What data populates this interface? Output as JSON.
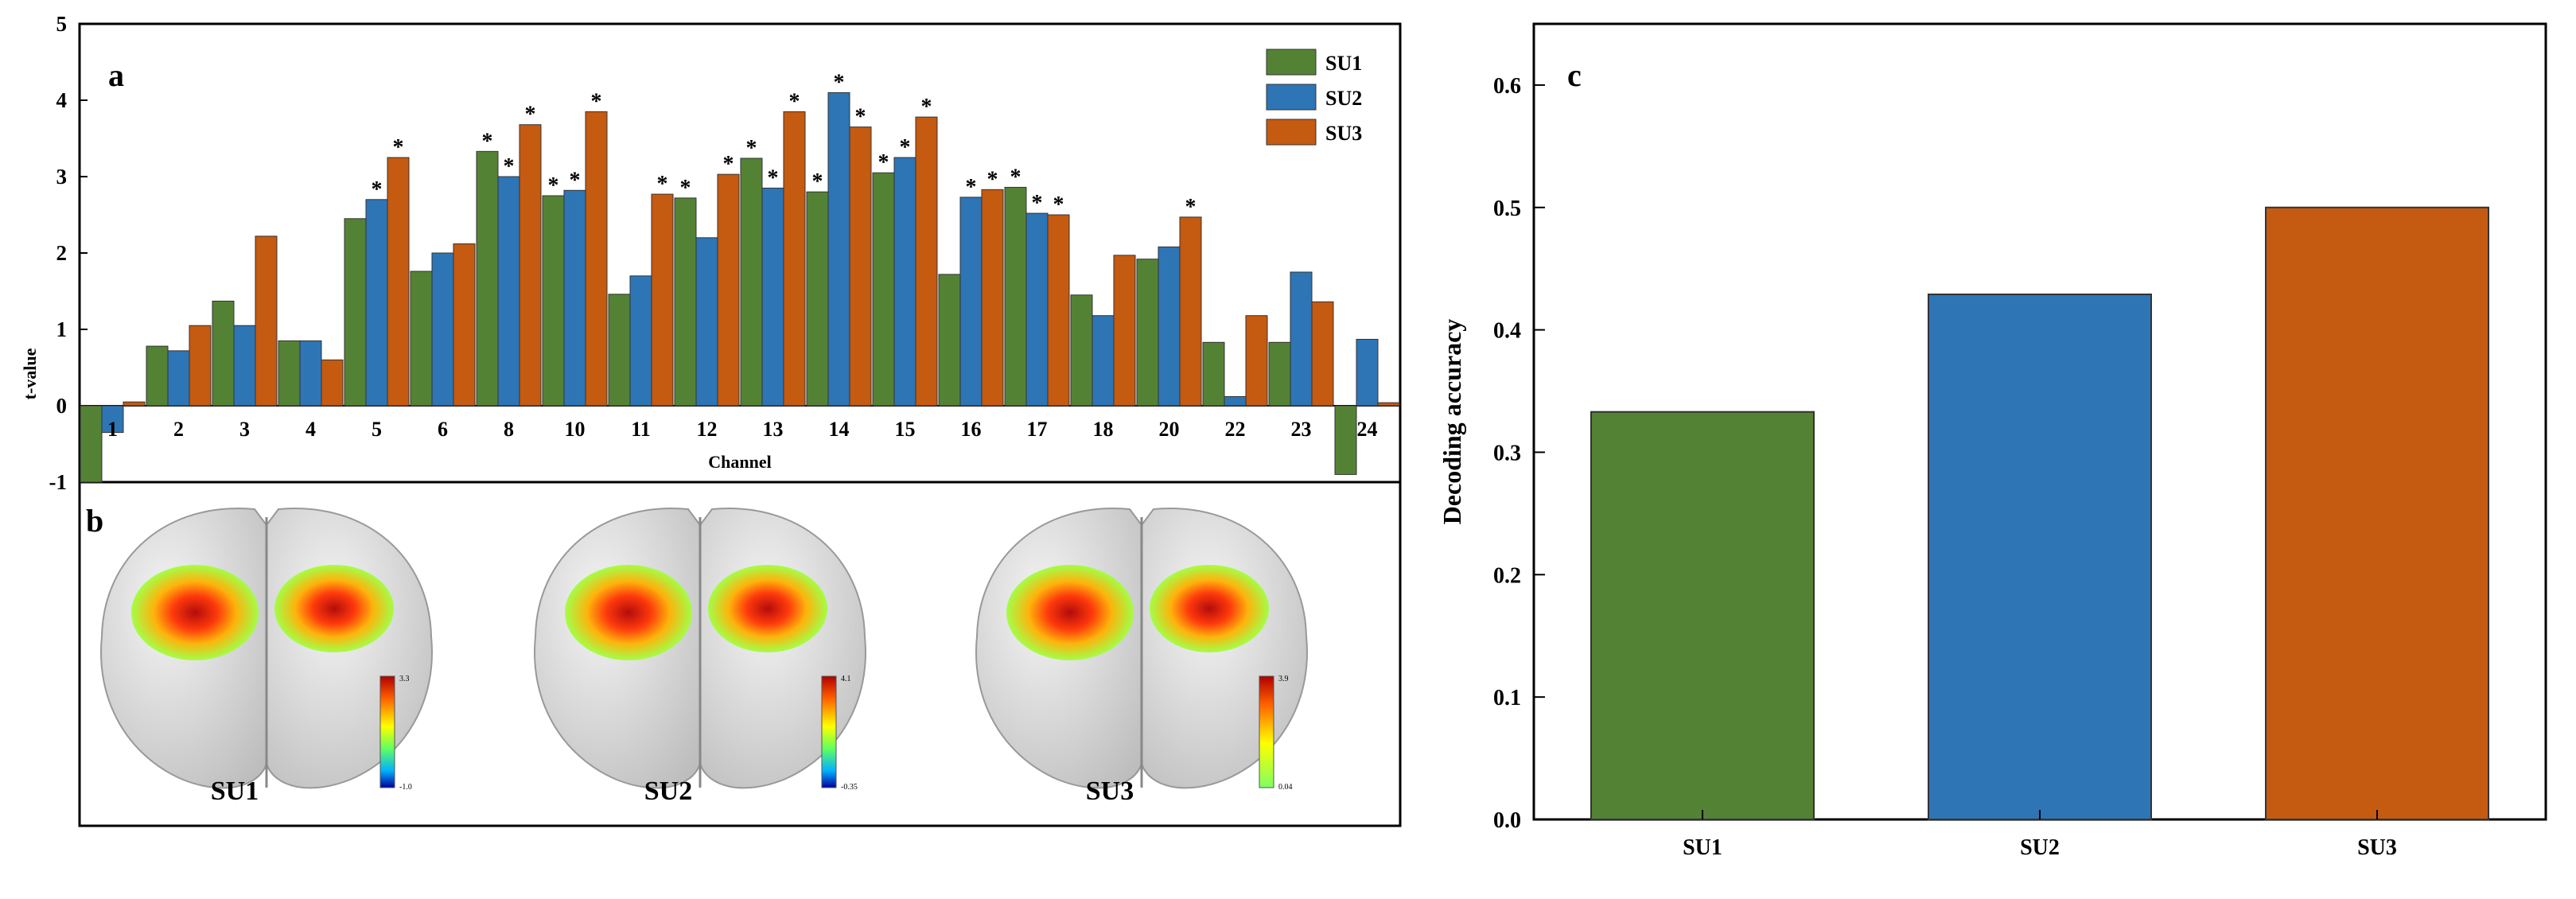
{
  "colors": {
    "SU1": "#548235",
    "SU2": "#2E75B6",
    "SU3": "#C55A11",
    "axis": "#000000",
    "panel_bg": "#ffffff"
  },
  "chart_data": [
    {
      "panel": "a",
      "type": "bar",
      "title": "",
      "xlabel": "Channel",
      "ylabel": "t-value",
      "ylim": [
        -1,
        5
      ],
      "yticks": [
        -1,
        0,
        1,
        2,
        3,
        4,
        5
      ],
      "legend": "top-right",
      "categories": [
        "1",
        "2",
        "3",
        "4",
        "5",
        "6",
        "8",
        "10",
        "11",
        "12",
        "13",
        "14",
        "15",
        "16",
        "17",
        "18",
        "20",
        "22",
        "23",
        "24"
      ],
      "series": [
        {
          "name": "SU1",
          "values": [
            -1.0,
            0.78,
            1.37,
            0.85,
            2.45,
            1.76,
            3.33,
            2.75,
            1.46,
            2.72,
            3.24,
            2.8,
            3.05,
            1.72,
            2.86,
            1.45,
            1.92,
            0.83,
            0.83,
            -0.9
          ],
          "significant": [
            false,
            false,
            false,
            false,
            false,
            false,
            true,
            true,
            false,
            true,
            true,
            true,
            true,
            false,
            true,
            false,
            false,
            false,
            false,
            false
          ]
        },
        {
          "name": "SU2",
          "values": [
            -0.35,
            0.72,
            1.05,
            0.85,
            2.7,
            2.0,
            3.0,
            2.82,
            1.7,
            2.2,
            2.85,
            4.1,
            3.25,
            2.73,
            2.52,
            1.18,
            2.08,
            0.12,
            1.75,
            0.87
          ],
          "significant": [
            false,
            false,
            false,
            false,
            true,
            false,
            true,
            true,
            false,
            false,
            true,
            true,
            true,
            true,
            true,
            false,
            false,
            false,
            false,
            false
          ]
        },
        {
          "name": "SU3",
          "values": [
            0.05,
            1.05,
            2.22,
            0.6,
            3.25,
            2.12,
            3.68,
            3.85,
            2.77,
            3.03,
            3.85,
            3.65,
            3.78,
            2.83,
            2.5,
            1.97,
            2.47,
            1.18,
            1.36,
            0.04
          ],
          "significant": [
            false,
            false,
            false,
            false,
            true,
            false,
            true,
            true,
            true,
            true,
            true,
            true,
            true,
            true,
            true,
            false,
            true,
            false,
            false,
            false
          ]
        }
      ],
      "significance_marker": "*"
    },
    {
      "panel": "b",
      "type": "other",
      "labels": [
        "SU1",
        "SU2",
        "SU3"
      ],
      "colorbar_ticks": [
        {
          "top": "3.3",
          "bottom": "-1.0"
        },
        {
          "top": "4.1",
          "bottom": "-0.35"
        },
        {
          "top": "3.9",
          "bottom": "0.04"
        }
      ]
    },
    {
      "panel": "c",
      "type": "bar",
      "title": "",
      "xlabel": "",
      "ylabel": "Decoding accuracy",
      "ylim": [
        0,
        0.65
      ],
      "yticks": [
        "0.0",
        "0.1",
        "0.2",
        "0.3",
        "0.4",
        "0.5",
        "0.6"
      ],
      "categories": [
        "SU1",
        "SU2",
        "SU3"
      ],
      "values": [
        0.333,
        0.429,
        0.5
      ]
    }
  ]
}
